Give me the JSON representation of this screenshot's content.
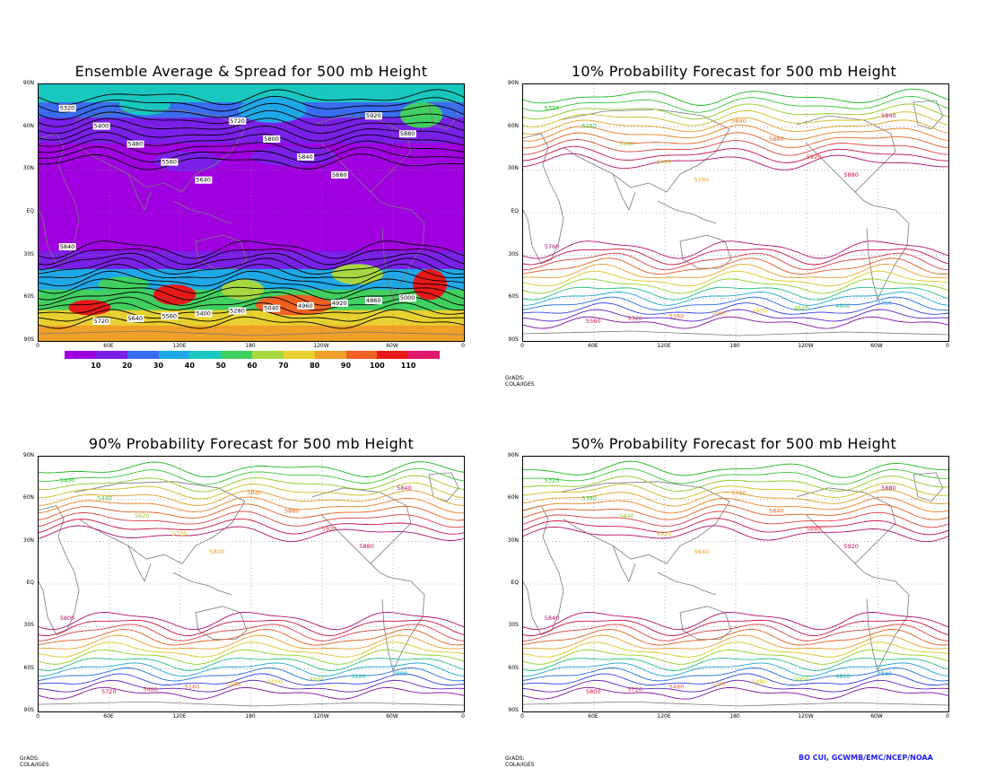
{
  "panels": [
    {
      "id": "spread",
      "title": "Ensemble Average & Spread for 500 mb Height"
    },
    {
      "id": "p10",
      "title": "10% Probability Forecast for 500 mb Height"
    },
    {
      "id": "p90",
      "title": "90% Probability Forecast for 500 mb Height"
    },
    {
      "id": "p50",
      "title": "50% Probability Forecast for 500 mb Height"
    }
  ],
  "lat_labels": [
    "90N",
    "60N",
    "30N",
    "EQ",
    "30S",
    "60S",
    "90S"
  ],
  "lon_labels": [
    "0",
    "60E",
    "120E",
    "180",
    "120W",
    "60W",
    "0"
  ],
  "colorbar": {
    "labels": [
      "10",
      "20",
      "30",
      "40",
      "50",
      "60",
      "70",
      "80",
      "90",
      "100",
      "110"
    ],
    "colors": [
      "#a000e0",
      "#7a1fe8",
      "#3a6cf0",
      "#1fa8e8",
      "#18c8c0",
      "#40d060",
      "#a8d840",
      "#e8d030",
      "#f0a028",
      "#f06020",
      "#e81818",
      "#e01870"
    ]
  },
  "credit": "GrADS: COLA/IGES",
  "author": "BO CUI, GCWMB/EMC/NCEP/NOAA",
  "contour_labels": {
    "spread": [
      "5320",
      "5400",
      "5480",
      "5560",
      "5640",
      "5720",
      "5800",
      "5840",
      "5880",
      "5920",
      "5880",
      "5840",
      "5720",
      "5640",
      "5560",
      "5400",
      "5280",
      "5040",
      "4960",
      "4920",
      "4860",
      "5000"
    ],
    "p10": [
      "5320",
      "5280",
      "5440",
      "5600",
      "5760",
      "5840",
      "5880",
      "5920",
      "5880",
      "5840",
      "5760",
      "5560",
      "5320",
      "5160",
      "5000",
      "4920",
      "4840",
      "4800",
      "4760"
    ],
    "p90": [
      "5400",
      "5440",
      "5620",
      "5720",
      "5800",
      "5840",
      "5880",
      "5920",
      "5880",
      "5840",
      "5800",
      "5720",
      "5480",
      "5160",
      "5080",
      "5000",
      "4920",
      "5120",
      "4980"
    ],
    "p50": [
      "5320",
      "5380",
      "5440",
      "5520",
      "5640",
      "5760",
      "5840",
      "5880",
      "5920",
      "5880",
      "5840",
      "5800",
      "5720",
      "5480",
      "5200",
      "5080",
      "5000",
      "4920",
      "4840"
    ]
  }
}
